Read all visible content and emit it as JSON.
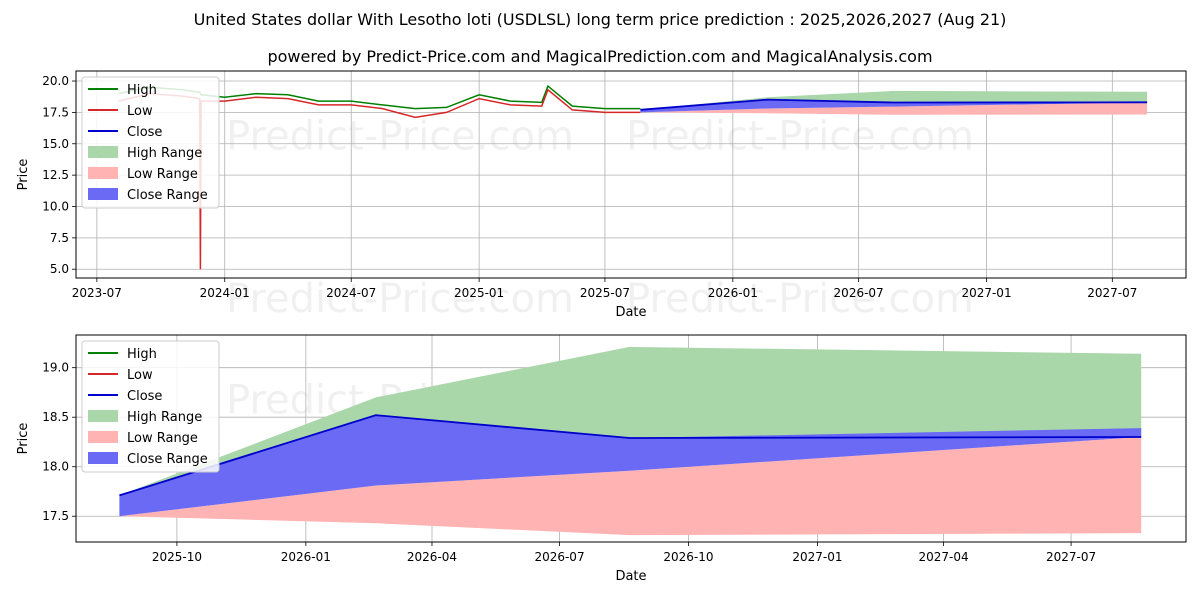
{
  "title_line1": "United States dollar With Lesotho loti (USDLSL) long term price prediction : 2025,2026,2027 (Aug 21)",
  "title_line2": "powered by Predict-Price.com and MagicalPrediction.com and MagicalAnalysis.com",
  "watermark": "Predict-Price.com",
  "colors": {
    "high": "#008000",
    "low": "#d62728",
    "close": "#0000cc",
    "high_range": "#a9d7a9",
    "low_range": "#ffb3b3",
    "close_range": "#6a6af5"
  },
  "chart_data": [
    {
      "type": "line",
      "xlabel": "Date",
      "ylabel": "Price",
      "xlim": [
        "2023-06-01",
        "2027-10-15"
      ],
      "ylim": [
        4.3,
        20.8
      ],
      "x_ticks": [
        "2023-07",
        "2024-01",
        "2024-07",
        "2025-01",
        "2025-07",
        "2026-01",
        "2026-07",
        "2027-01",
        "2027-07"
      ],
      "y_ticks": [
        "5.0",
        "7.5",
        "10.0",
        "12.5",
        "15.0",
        "17.5",
        "20.0"
      ],
      "grid": true,
      "legend_position": "upper-left",
      "legend": [
        "High",
        "Low",
        "Close",
        "High Range",
        "Low Range",
        "Close Range"
      ],
      "series": [
        {
          "name": "High",
          "x": [
            "2023-08-01",
            "2023-09-15",
            "2023-11-01",
            "2023-11-26",
            "2023-11-28",
            "2024-01-01",
            "2024-02-15",
            "2024-04-01",
            "2024-05-15",
            "2024-07-01",
            "2024-08-15",
            "2024-10-01",
            "2024-11-15",
            "2025-01-01",
            "2025-02-15",
            "2025-04-01",
            "2025-04-10",
            "2025-05-15",
            "2025-07-01",
            "2025-08-21"
          ],
          "values": [
            19.0,
            19.5,
            19.3,
            19.1,
            18.9,
            18.7,
            19.0,
            18.9,
            18.4,
            18.4,
            18.1,
            17.8,
            17.9,
            18.9,
            18.4,
            18.3,
            19.6,
            18.0,
            17.8,
            17.8
          ]
        },
        {
          "name": "Low",
          "x": [
            "2023-08-01",
            "2023-09-15",
            "2023-11-01",
            "2023-11-26",
            "2023-11-27",
            "2023-11-28",
            "2024-01-01",
            "2024-02-15",
            "2024-04-01",
            "2024-05-15",
            "2024-07-01",
            "2024-08-15",
            "2024-10-01",
            "2024-11-15",
            "2025-01-01",
            "2025-02-15",
            "2025-04-01",
            "2025-04-10",
            "2025-05-15",
            "2025-07-01",
            "2025-08-21"
          ],
          "values": [
            18.4,
            19.0,
            18.8,
            18.6,
            5.0,
            18.4,
            18.4,
            18.7,
            18.6,
            18.1,
            18.1,
            17.8,
            17.1,
            17.5,
            18.6,
            18.1,
            18.0,
            19.3,
            17.7,
            17.5,
            17.5
          ]
        },
        {
          "name": "Close",
          "x": [
            "2025-08-21",
            "2026-02-20",
            "2026-08-20",
            "2027-08-20"
          ],
          "values": [
            17.71,
            18.52,
            18.29,
            18.3
          ]
        },
        {
          "name": "High Range",
          "x": [
            "2025-08-21",
            "2026-02-20",
            "2026-08-20",
            "2027-08-20"
          ],
          "upper": [
            17.71,
            18.7,
            19.21,
            19.14
          ],
          "lower": [
            17.71,
            18.52,
            18.29,
            18.3
          ]
        },
        {
          "name": "Low Range",
          "x": [
            "2025-08-21",
            "2026-02-20",
            "2026-08-20",
            "2027-08-20"
          ],
          "upper": [
            17.5,
            17.81,
            17.96,
            18.3
          ],
          "lower": [
            17.5,
            17.43,
            17.31,
            17.33
          ]
        },
        {
          "name": "Close Range",
          "x": [
            "2025-08-21",
            "2026-02-20",
            "2026-08-20",
            "2027-08-20"
          ],
          "upper": [
            17.71,
            18.52,
            18.29,
            18.39
          ],
          "lower": [
            17.5,
            17.81,
            17.96,
            18.3
          ]
        }
      ]
    },
    {
      "type": "line",
      "xlabel": "Date",
      "ylabel": "Price",
      "xlim": [
        "2025-07-21",
        "2027-09-21"
      ],
      "ylim": [
        17.24,
        19.33
      ],
      "x_ticks": [
        "2025-10",
        "2026-01",
        "2026-04",
        "2026-07",
        "2026-10",
        "2027-01",
        "2027-04",
        "2027-07"
      ],
      "y_ticks": [
        "17.5",
        "18.0",
        "18.5",
        "19.0"
      ],
      "grid": true,
      "legend_position": "upper-left",
      "legend": [
        "High",
        "Low",
        "Close",
        "High Range",
        "Low Range",
        "Close Range"
      ],
      "series": [
        {
          "name": "Close",
          "x": [
            "2025-08-21",
            "2026-02-20",
            "2026-08-20",
            "2027-08-20"
          ],
          "values": [
            17.71,
            18.52,
            18.29,
            18.3
          ]
        },
        {
          "name": "High Range",
          "x": [
            "2025-08-21",
            "2026-02-20",
            "2026-08-20",
            "2027-08-20"
          ],
          "upper": [
            17.71,
            18.7,
            19.21,
            19.14
          ],
          "lower": [
            17.71,
            18.52,
            18.29,
            18.3
          ]
        },
        {
          "name": "Low Range",
          "x": [
            "2025-08-21",
            "2026-02-20",
            "2026-08-20",
            "2027-08-20"
          ],
          "upper": [
            17.5,
            17.81,
            17.96,
            18.3
          ],
          "lower": [
            17.5,
            17.43,
            17.31,
            17.33
          ]
        },
        {
          "name": "Close Range",
          "x": [
            "2025-08-21",
            "2026-02-20",
            "2026-08-20",
            "2027-08-20"
          ],
          "upper": [
            17.71,
            18.52,
            18.29,
            18.39
          ],
          "lower": [
            17.5,
            17.81,
            17.96,
            18.3
          ]
        }
      ]
    }
  ]
}
